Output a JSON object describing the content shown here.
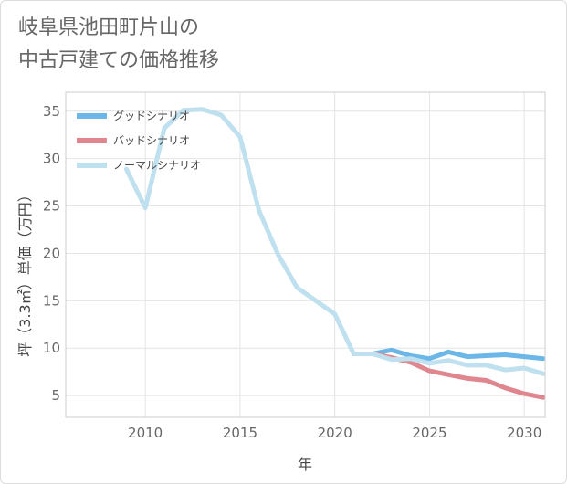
{
  "title_lines": [
    "岐阜県池田町片山の",
    "中古戸建ての価格推移"
  ],
  "chart_data": {
    "type": "line",
    "xlabel": "年",
    "ylabel": "坪（3.3㎡）単価（万円）",
    "xlim": [
      2005.8,
      2031.1
    ],
    "ylim": [
      2.7,
      37.0
    ],
    "x_ticks": [
      2010,
      2015,
      2020,
      2025,
      2030
    ],
    "y_ticks": [
      5,
      10,
      15,
      20,
      25,
      30,
      35
    ],
    "grid": true,
    "legend_position": "top-left",
    "series": [
      {
        "name": "グッドシナリオ",
        "color": "#6cb6e8",
        "x": [
          2021,
          2022,
          2023,
          2024,
          2025,
          2026,
          2027,
          2028,
          2029,
          2030,
          2031
        ],
        "y": [
          9.4,
          9.4,
          9.8,
          9.2,
          8.9,
          9.6,
          9.1,
          9.2,
          9.3,
          9.1,
          8.9
        ]
      },
      {
        "name": "バッドシナリオ",
        "color": "#e0868f",
        "x": [
          2021,
          2022,
          2023,
          2024,
          2025,
          2026,
          2027,
          2028,
          2029,
          2030,
          2031
        ],
        "y": [
          9.4,
          9.4,
          9.0,
          8.5,
          7.6,
          7.2,
          6.8,
          6.6,
          5.8,
          5.2,
          4.8
        ]
      },
      {
        "name": "ノーマルシナリオ",
        "color": "#bfe0ee",
        "x": [
          2009,
          2010,
          2011,
          2012,
          2013,
          2014,
          2015,
          2016,
          2017,
          2018,
          2019,
          2020,
          2021,
          2022,
          2023,
          2024,
          2025,
          2026,
          2027,
          2028,
          2029,
          2030,
          2031
        ],
        "y": [
          28.9,
          24.8,
          33.2,
          35.1,
          35.2,
          34.6,
          32.3,
          24.5,
          19.9,
          16.4,
          15.0,
          13.6,
          9.4,
          9.4,
          8.8,
          8.9,
          8.4,
          8.7,
          8.2,
          8.2,
          7.7,
          7.9,
          7.3
        ]
      }
    ]
  }
}
